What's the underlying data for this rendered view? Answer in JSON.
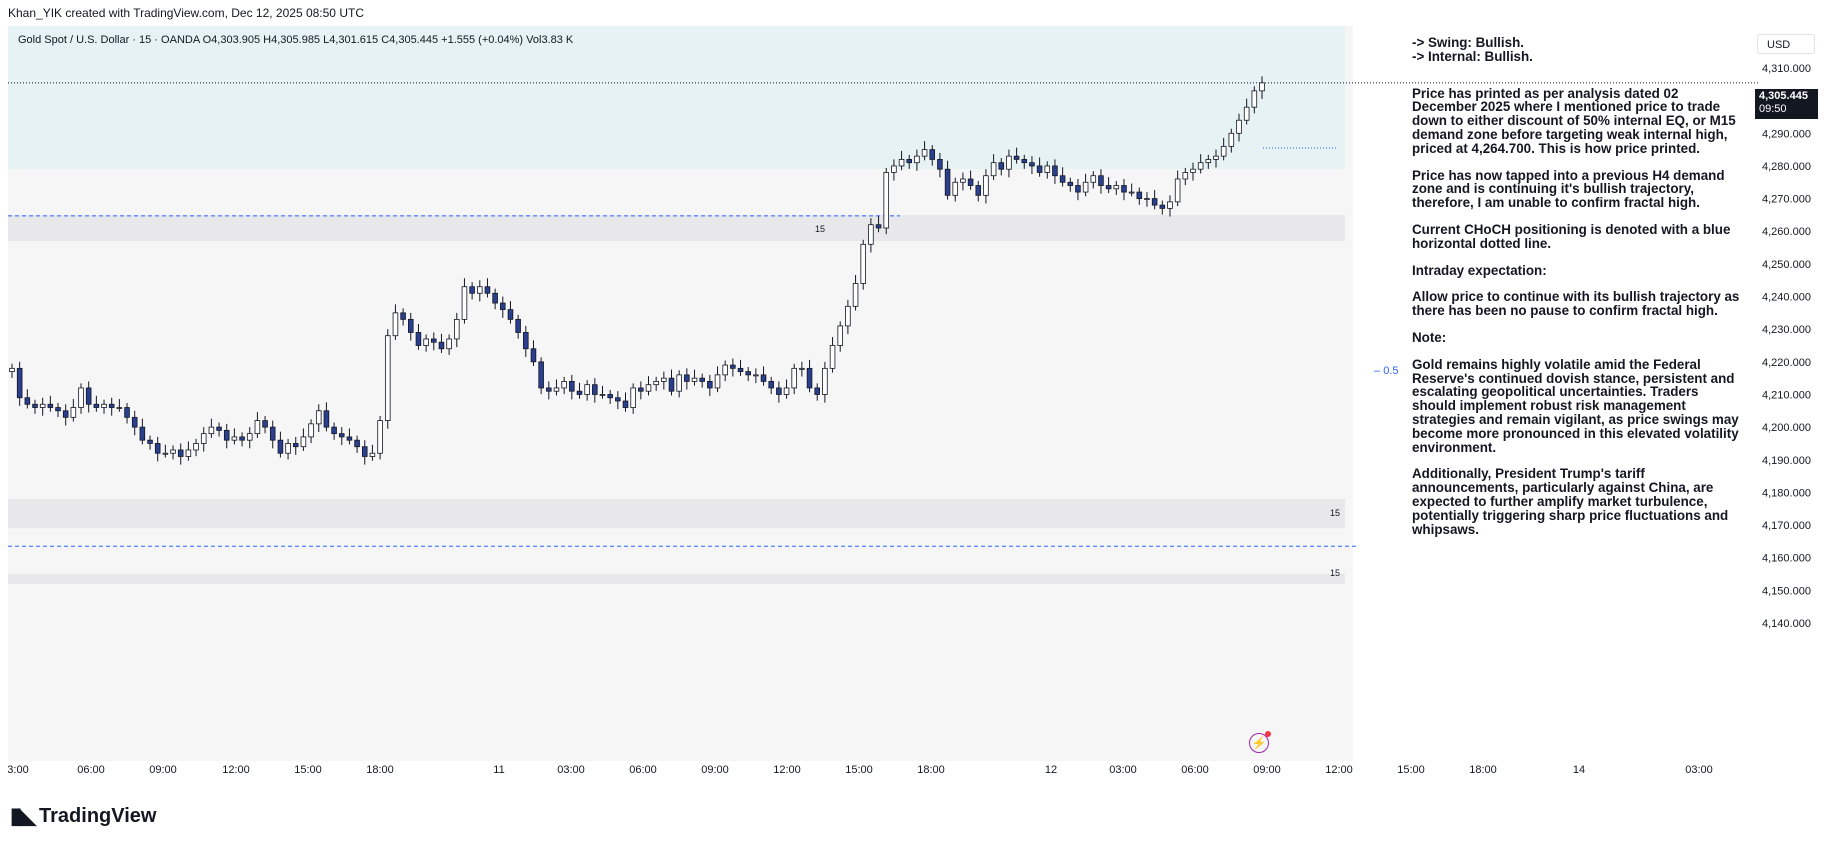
{
  "header": {
    "attribution": "Khan_YIK created with TradingView.com, Dec 12, 2025 08:50 UTC"
  },
  "symbol": {
    "legend": "Gold Spot / U.S. Dollar · 15 · OANDA  O4,303.905  H4,305.985  L4,301.615  C4,305.445  +1.555 (+0.04%)  Vol3.83 K"
  },
  "currency_button": "USD",
  "last_price": {
    "value": "4,305.445",
    "countdown": "09:50"
  },
  "fib_label": "0.5",
  "zone_labels": {
    "box1": "15",
    "box2": "15",
    "choch": "15"
  },
  "notes": {
    "swing": "-> Swing: Bullish.",
    "internal": "-> Internal: Bullish.",
    "p1": "Price has printed as per analysis dated 02 December 2025 where I mentioned price to trade down to either discount of 50% internal EQ, or M15 demand zone before targeting weak internal high, priced at 4,264.700.  This is how price printed.",
    "p2": "Price has now tapped into a previous H4 demand zone and is continuing it's bullish trajectory, therefore, I am unable to confirm fractal high.",
    "p3": "Current CHoCH positioning is denoted with a blue horizontal dotted line.",
    "p4": "Intraday expectation:",
    "p5": "Allow price to continue with its bullish trajectory as there has been no pause to confirm fractal high.",
    "p6": "Note:",
    "p7": "Gold remains highly volatile amid the Federal Reserve's continued dovish stance, persistent and escalating geopolitical uncertainties. Traders should implement robust risk management strategies and remain vigilant, as price swings may become more pronounced in this elevated volatility environment.",
    "p8": "Additionally, President Trump's tariff announcements, particularly against China, are expected to further amplify market turbulence, potentially triggering sharp price fluctuations and whipsaws."
  },
  "logo_text": "TradingView",
  "colors": {
    "bull": "#ffffff",
    "bear": "#2a3f8f",
    "supply_zone": "#e6f2f3",
    "zone_gray": "#e8e8ea",
    "choch": "#2962ff"
  },
  "chart_data": {
    "type": "candlestick",
    "title": "Gold Spot / U.S. Dollar · 15 · OANDA",
    "ylim": [
      4134,
      4316
    ],
    "y_ticks": [
      "4,310.000",
      "4,300.000",
      "4,290.000",
      "4,280.000",
      "4,270.000",
      "4,260.000",
      "4,250.000",
      "4,240.000",
      "4,230.000",
      "4,220.000",
      "4,210.000",
      "4,200.000",
      "4,190.000",
      "4,180.000",
      "4,170.000",
      "4,160.000",
      "4,150.000",
      "4,140.000"
    ],
    "y_tick_values": [
      4310,
      4300,
      4290,
      4280,
      4270,
      4260,
      4250,
      4240,
      4230,
      4220,
      4210,
      4200,
      4190,
      4180,
      4170,
      4160,
      4150,
      4140
    ],
    "x_ticks": [
      "3:00",
      "06:00",
      "09:00",
      "12:00",
      "15:00",
      "18:00",
      "11",
      "03:00",
      "06:00",
      "09:00",
      "12:00",
      "15:00",
      "18:00",
      "12",
      "03:00",
      "06:00",
      "09:00",
      "12:00",
      "15:00",
      "18:00",
      "14",
      "03:00"
    ],
    "zones": [
      {
        "name": "supply-zone",
        "low": 4279,
        "high": 4316
      },
      {
        "name": "demand-zone-upper",
        "low": 4257,
        "high": 4265
      },
      {
        "name": "demand-zone-lower",
        "low": 4169,
        "high": 4178
      },
      {
        "name": "demand-zone-bottom",
        "low": 4152,
        "high": 4155
      }
    ],
    "levels": [
      {
        "name": "choch-line",
        "value": 4264.7
      },
      {
        "name": "lower-choch-line",
        "value": 4163.5
      },
      {
        "name": "last-price-line",
        "value": 4305.445
      },
      {
        "name": "h4-level",
        "value": 4285.5
      }
    ],
    "closes": [
      4218,
      4209,
      4207,
      4206,
      4207,
      4206,
      4205,
      4203,
      4206,
      4212,
      4207,
      4206,
      4207,
      4206,
      4206,
      4203,
      4200,
      4196,
      4195,
      4192,
      4192,
      4193,
      4191,
      4193,
      4195,
      4198,
      4200,
      4199,
      4196,
      4197,
      4196,
      4198,
      4202,
      4200,
      4196,
      4192,
      4195,
      4194,
      4197,
      4201,
      4205,
      4200,
      4198,
      4197,
      4196,
      4194,
      4191,
      4192,
      4202,
      4228,
      4235,
      4233,
      4229,
      4225,
      4227,
      4226,
      4224,
      4227,
      4233,
      4243,
      4241,
      4243,
      4241,
      4238,
      4236,
      4233,
      4229,
      4224,
      4220,
      4212,
      4211,
      4212,
      4214,
      4211,
      4210,
      4213,
      4210,
      4210,
      4209,
      4208,
      4206,
      4212,
      4211,
      4213,
      4214,
      4215,
      4211,
      4216,
      4214,
      4215,
      4214,
      4212,
      4216,
      4219,
      4218,
      4217,
      4216,
      4216,
      4214,
      4212,
      4210,
      4212,
      4218,
      4218,
      4212,
      4210,
      4218,
      4225,
      4231,
      4237,
      4244,
      4256,
      4262,
      4261,
      4278,
      4280,
      4282,
      4281,
      4283,
      4285,
      4282,
      4279,
      4271,
      4275,
      4276,
      4274,
      4271,
      4277,
      4281,
      4279,
      4283,
      4282,
      4281,
      4280,
      4278,
      4280,
      4277,
      4275,
      4274,
      4272,
      4275,
      4277,
      4274,
      4273,
      4274,
      4272,
      4272,
      4270,
      4270,
      4268,
      4267,
      4269,
      4276,
      4278,
      4279,
      4281,
      4282,
      4283,
      4286,
      4290,
      4294,
      4298,
      4303,
      4305.445
    ]
  }
}
